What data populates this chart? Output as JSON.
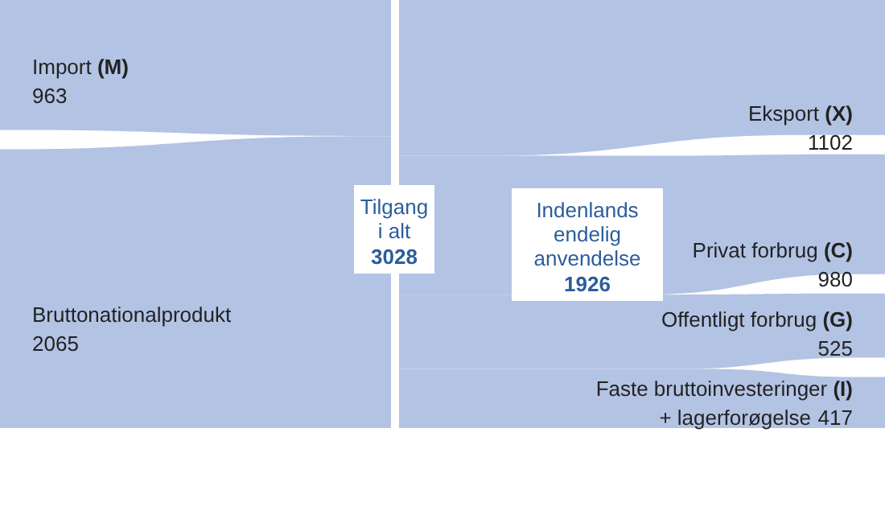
{
  "chart_data": {
    "type": "other",
    "categories": [
      "Import (M)",
      "Bruttonationalprodukt",
      "Tilgang\ni alt",
      "Eksport (X)",
      "Indenlands\nendelig\nanvendelse",
      "Privat forbrug (C)",
      "Offentligt forbrug (G)",
      "Faste bruttoinvesteringer (I)\n+ lagerforøgelse"
    ],
    "values": [
      963,
      2065,
      3028,
      1102,
      1926,
      980,
      525,
      417
    ],
    "colors": [
      "#b3c3e4",
      "#b3c3e4",
      "#ffffff",
      "#b3c3e4",
      "#ffffff",
      "#b3c3e4",
      "#b3c3e4",
      "#b3c3e4"
    ],
    "data_labels": true
  }
}
